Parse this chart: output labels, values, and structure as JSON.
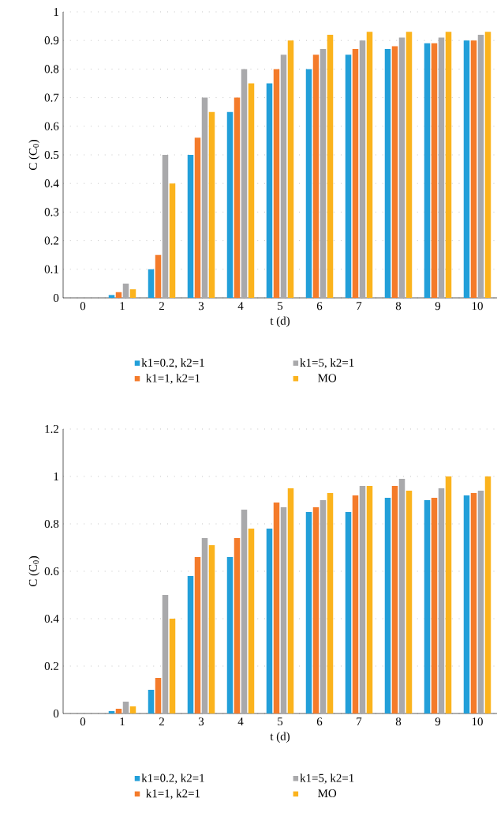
{
  "chart_data": [
    {
      "type": "bar",
      "xlabel": "t (d)",
      "ylabel": "C (C$_{0}$)",
      "categories": [
        "0",
        "1",
        "2",
        "3",
        "4",
        "5",
        "6",
        "7",
        "8",
        "9",
        "10"
      ],
      "ylim": [
        0,
        1
      ],
      "yticks": [
        0,
        0.1,
        0.2,
        0.3,
        0.4,
        0.5,
        0.6,
        0.7,
        0.8,
        0.9,
        1
      ],
      "grid": "y",
      "legend": "bottom",
      "series": [
        {
          "name": "k1=0.2, k2=1",
          "color": "#229fd9",
          "values": [
            0,
            0.01,
            0.1,
            0.5,
            0.65,
            0.75,
            0.8,
            0.85,
            0.87,
            0.89,
            0.9
          ]
        },
        {
          "name": "k1=1, k2=1",
          "color": "#f47b2a",
          "values": [
            0,
            0.02,
            0.15,
            0.56,
            0.7,
            0.8,
            0.85,
            0.87,
            0.88,
            0.89,
            0.9
          ]
        },
        {
          "name": "k1=5, k2=1",
          "color": "#a9a9ab",
          "values": [
            0,
            0.05,
            0.5,
            0.7,
            0.8,
            0.85,
            0.87,
            0.9,
            0.91,
            0.91,
            0.92
          ]
        },
        {
          "name": "MO",
          "color": "#fbb31d",
          "values": [
            0,
            0.03,
            0.4,
            0.65,
            0.75,
            0.9,
            0.92,
            0.93,
            0.93,
            0.93,
            0.93
          ]
        }
      ]
    },
    {
      "type": "bar",
      "xlabel": "t (d)",
      "ylabel": "C (C$_{0}$)",
      "categories": [
        "0",
        "1",
        "2",
        "3",
        "4",
        "5",
        "6",
        "7",
        "8",
        "9",
        "10"
      ],
      "ylim": [
        0,
        1.2
      ],
      "yticks": [
        0,
        0.2,
        0.4,
        0.6,
        0.8,
        1,
        1.2
      ],
      "grid": "y",
      "legend": "bottom",
      "series": [
        {
          "name": "k1=0.2, k2=1",
          "color": "#229fd9",
          "values": [
            0,
            0.01,
            0.1,
            0.58,
            0.66,
            0.78,
            0.85,
            0.85,
            0.91,
            0.9,
            0.92
          ]
        },
        {
          "name": "k1=1, k2=1",
          "color": "#f47b2a",
          "values": [
            0,
            0.02,
            0.15,
            0.66,
            0.74,
            0.89,
            0.87,
            0.92,
            0.96,
            0.91,
            0.93
          ]
        },
        {
          "name": "k1=5, k2=1",
          "color": "#a9a9ab",
          "values": [
            0,
            0.05,
            0.5,
            0.74,
            0.86,
            0.87,
            0.9,
            0.96,
            0.99,
            0.95,
            0.94
          ]
        },
        {
          "name": "MO",
          "color": "#fbb31d",
          "values": [
            0,
            0.03,
            0.4,
            0.71,
            0.78,
            0.95,
            0.93,
            0.96,
            0.94,
            1,
            1
          ]
        }
      ]
    }
  ]
}
